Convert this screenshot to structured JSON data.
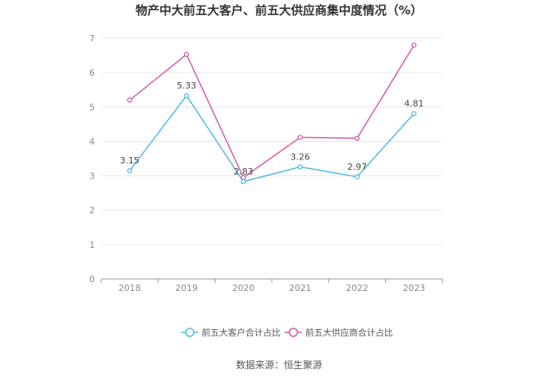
{
  "chart_data": {
    "type": "line",
    "title": "物产中大前五大客户、前五大供应商集中度情况（%）",
    "categories": [
      "2018",
      "2019",
      "2020",
      "2021",
      "2022",
      "2023"
    ],
    "ylim": [
      0,
      7
    ],
    "yticks": [
      "0",
      "1",
      "2",
      "3",
      "4",
      "5",
      "6",
      "7"
    ],
    "grid": true,
    "legend_position": "bottom",
    "series": [
      {
        "name": "前五大客户合计占比",
        "color": "#4fb8ea",
        "values": [
          3.15,
          5.33,
          2.83,
          3.26,
          2.97,
          4.81
        ],
        "labels": [
          "3.15",
          "5.33",
          "2.83",
          "3.26",
          "2.97",
          "4.81"
        ]
      },
      {
        "name": "前五大供应商合计占比",
        "color": "#d25ca8",
        "values": [
          5.2,
          6.53,
          2.95,
          4.12,
          4.09,
          6.8
        ],
        "labels": []
      }
    ]
  },
  "source": "数据来源：恒生聚源"
}
